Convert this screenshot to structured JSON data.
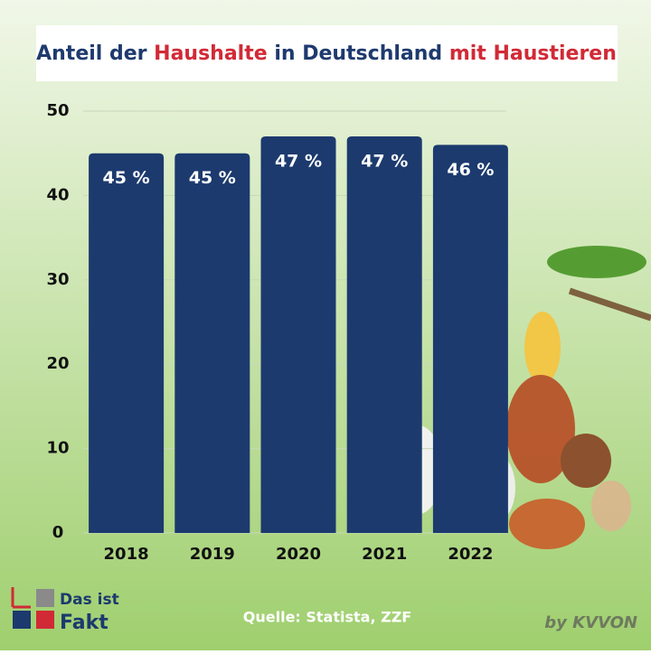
{
  "chart_data": {
    "type": "bar",
    "title_segments": [
      {
        "text": "Anteil der ",
        "color": "#1e3a6e"
      },
      {
        "text": "Haushalte",
        "color": "#d12a36"
      },
      {
        "text": " in Deutschland ",
        "color": "#1e3a6e"
      },
      {
        "text": "mit Haustieren",
        "color": "#d12a36"
      }
    ],
    "categories": [
      "2018",
      "2019",
      "2020",
      "2021",
      "2022"
    ],
    "values": [
      45,
      45,
      47,
      47,
      46
    ],
    "value_labels": [
      "45 %",
      "45 %",
      "47 %",
      "47 %",
      "46 %"
    ],
    "color": "#1c3a6e",
    "ylim": [
      0,
      50
    ],
    "yticks": [
      0,
      10,
      20,
      30,
      40,
      50
    ],
    "grid": true,
    "source": "Quelle: Statista, ZZF",
    "logo": [
      "Das ist",
      "Fakt"
    ],
    "credit": "by KVVON"
  }
}
